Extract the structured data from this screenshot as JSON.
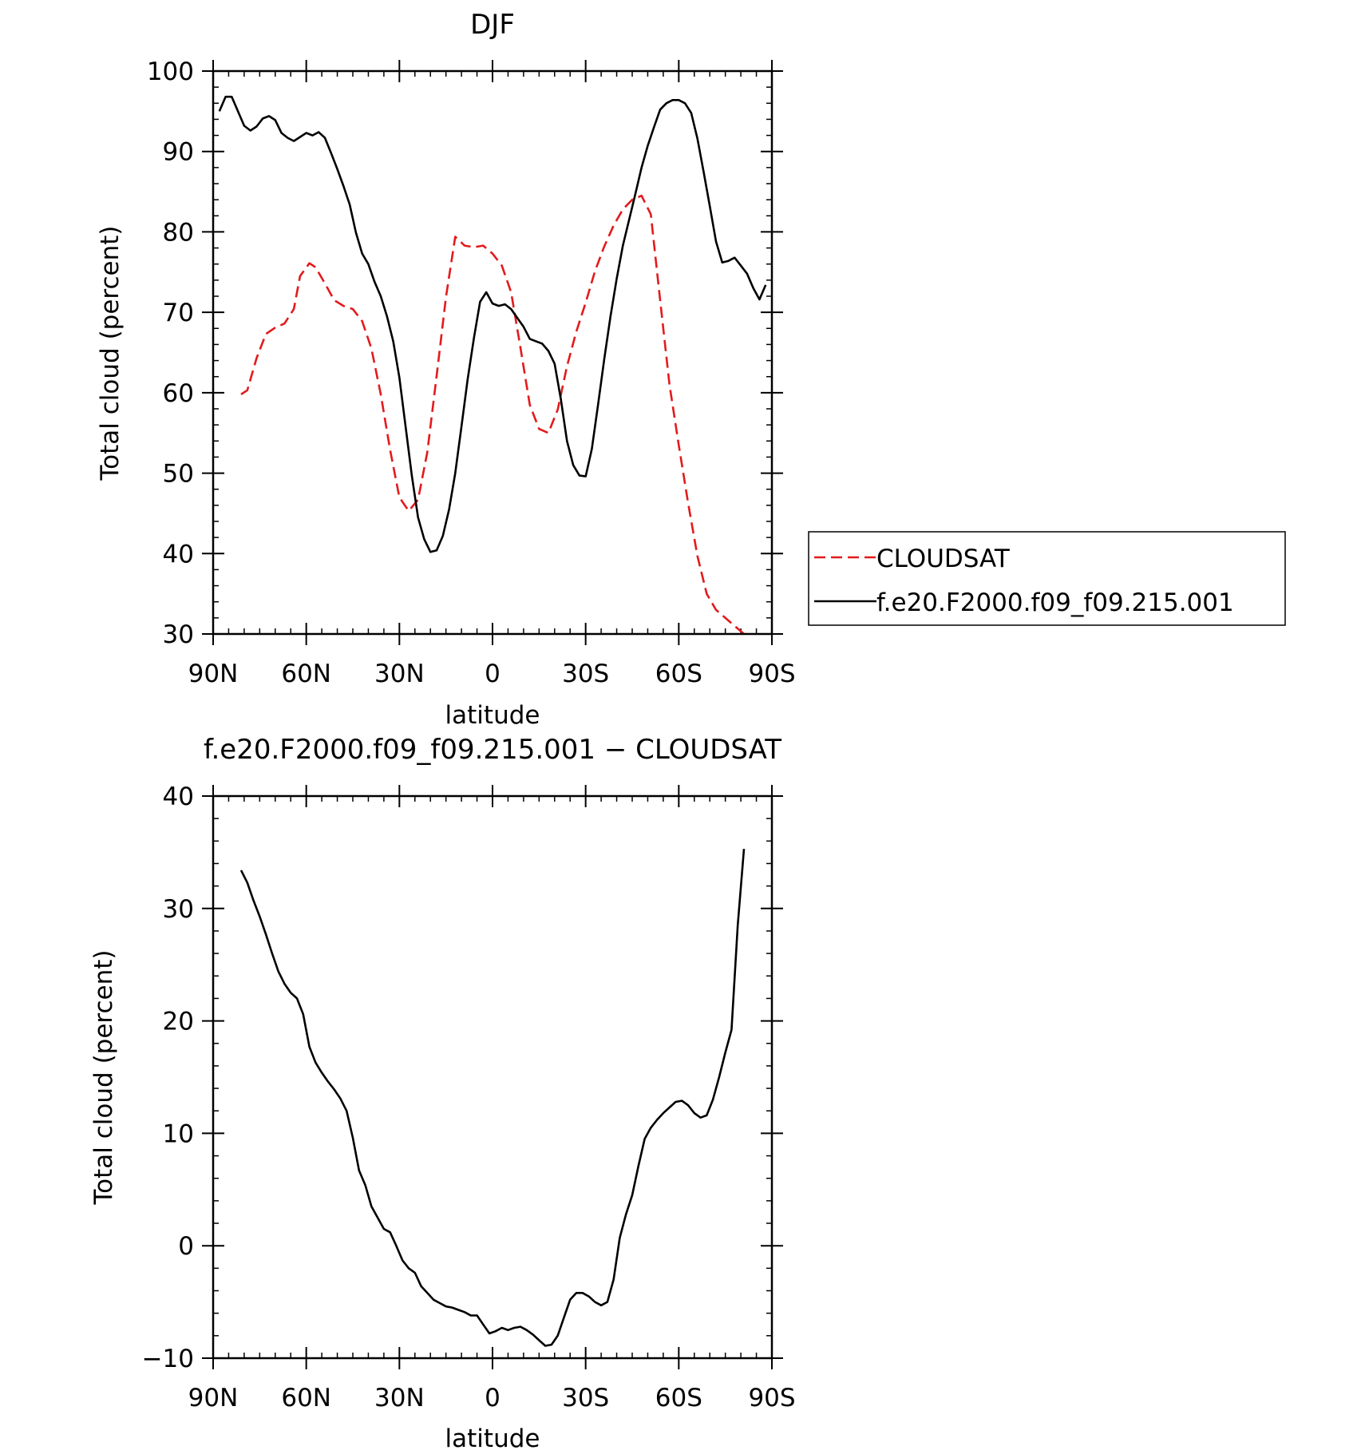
{
  "chart_data": [
    {
      "type": "line",
      "title": "DJF",
      "xlabel": "latitude",
      "ylabel": "Total cloud (percent)",
      "xlim": [
        90,
        -90
      ],
      "ylim": [
        30,
        100
      ],
      "yticks": [
        30,
        40,
        50,
        60,
        70,
        80,
        90,
        100
      ],
      "xticks": [
        {
          "value": 90,
          "label": "90N"
        },
        {
          "value": 60,
          "label": "60N"
        },
        {
          "value": 30,
          "label": "30N"
        },
        {
          "value": 0,
          "label": "0"
        },
        {
          "value": -30,
          "label": "30S"
        },
        {
          "value": -60,
          "label": "60S"
        },
        {
          "value": -90,
          "label": "90S"
        }
      ],
      "grid": false,
      "legend": "right",
      "series": [
        {
          "name": "CLOUDSAT",
          "color": "#e31a1c",
          "dash": "dashed",
          "x": [
            81,
            79,
            76,
            73,
            70,
            67,
            64,
            62,
            59,
            57,
            54,
            51,
            48,
            45,
            42,
            39,
            36,
            33,
            30,
            27,
            24,
            21,
            18,
            15,
            12,
            9,
            6,
            3,
            0,
            -3,
            -6,
            -9,
            -12,
            -15,
            -18,
            -21,
            -24,
            -27,
            -30,
            -33,
            -36,
            -39,
            -42,
            -45,
            -48,
            -51,
            -54,
            -57,
            -60,
            -63,
            -66,
            -69,
            -72,
            -75,
            -78,
            -81
          ],
          "y": [
            59.8,
            60.3,
            64.3,
            67.3,
            68.1,
            68.6,
            70.4,
            74.5,
            76.1,
            75.6,
            73.6,
            71.5,
            70.8,
            70.4,
            68.9,
            65.5,
            59.8,
            52.9,
            47.0,
            45.3,
            46.7,
            52.6,
            62.1,
            71.9,
            79.4,
            78.3,
            78.1,
            78.3,
            77.3,
            75.8,
            72.5,
            65.6,
            58.5,
            55.5,
            55.0,
            57.9,
            63.3,
            67.6,
            71.2,
            75.1,
            78.2,
            80.8,
            82.8,
            84.0,
            84.5,
            82.2,
            71.5,
            61.0,
            53.5,
            46.3,
            39.7,
            35.0,
            33.0,
            32.0,
            31.0,
            30.0
          ]
        },
        {
          "name": "f.e20.F2000.f09_f09.215.001",
          "color": "#000000",
          "dash": "solid",
          "x": [
            88,
            86,
            84,
            82,
            80,
            78,
            76,
            74,
            72,
            70,
            68,
            66,
            64,
            62,
            60,
            58,
            56,
            54,
            52,
            50,
            48,
            46,
            44,
            42,
            40,
            38,
            36,
            34,
            32,
            30,
            28,
            26,
            24,
            22,
            20,
            18,
            16,
            14,
            12,
            10,
            8,
            6,
            4,
            2,
            0,
            -2,
            -4,
            -6,
            -8,
            -10,
            -12,
            -14,
            -16,
            -18,
            -20,
            -22,
            -24,
            -26,
            -28,
            -30,
            -32,
            -34,
            -36,
            -38,
            -40,
            -42,
            -44,
            -46,
            -48,
            -50,
            -52,
            -54,
            -56,
            -58,
            -60,
            -62,
            -64,
            -66,
            -68,
            -70,
            -72,
            -74,
            -76,
            -78,
            -80,
            -82,
            -84,
            -86,
            -88
          ],
          "y": [
            95.0,
            96.8,
            96.8,
            95.0,
            93.2,
            92.6,
            93.1,
            94.1,
            94.4,
            93.9,
            92.3,
            91.7,
            91.3,
            91.8,
            92.3,
            92.0,
            92.4,
            91.7,
            89.8,
            87.8,
            85.7,
            83.4,
            79.9,
            77.3,
            76.0,
            73.8,
            72.0,
            69.5,
            66.4,
            61.9,
            55.8,
            49.7,
            44.5,
            41.8,
            40.2,
            40.4,
            42.2,
            45.5,
            50.0,
            55.8,
            61.7,
            66.8,
            71.3,
            72.5,
            71.1,
            70.8,
            71.0,
            70.4,
            69.3,
            68.2,
            66.7,
            66.4,
            66.1,
            65.2,
            63.6,
            59.2,
            54.0,
            51.0,
            49.7,
            49.6,
            53.0,
            58.5,
            64.2,
            69.5,
            74.2,
            78.3,
            81.5,
            84.7,
            88.0,
            90.7,
            93.0,
            95.2,
            96.0,
            96.4,
            96.4,
            96.0,
            94.8,
            91.6,
            87.5,
            83.2,
            78.8,
            76.2,
            76.4,
            76.8,
            75.8,
            74.8,
            73.0,
            71.6,
            73.4
          ]
        }
      ]
    },
    {
      "type": "line",
      "title": "f.e20.F2000.f09_f09.215.001 − CLOUDSAT",
      "xlabel": "latitude",
      "ylabel": "Total cloud (percent)",
      "xlim": [
        90,
        -90
      ],
      "ylim": [
        -10,
        40
      ],
      "yticks": [
        -10,
        0,
        10,
        20,
        30,
        40
      ],
      "ytick_labels": [
        "−10",
        "0",
        "10",
        "20",
        "30",
        "40"
      ],
      "xticks": [
        {
          "value": 90,
          "label": "90N"
        },
        {
          "value": 60,
          "label": "60N"
        },
        {
          "value": 30,
          "label": "30N"
        },
        {
          "value": 0,
          "label": "0"
        },
        {
          "value": -30,
          "label": "30S"
        },
        {
          "value": -60,
          "label": "60S"
        },
        {
          "value": -90,
          "label": "90S"
        }
      ],
      "grid": false,
      "series": [
        {
          "color": "#000000",
          "x": [
            81,
            79,
            77,
            75,
            73,
            71,
            69,
            67,
            65,
            63,
            61,
            59,
            57,
            55,
            53,
            51,
            49,
            47,
            45,
            43,
            41,
            39,
            37,
            35,
            33,
            31,
            29,
            27,
            25,
            23,
            21,
            19,
            17,
            15,
            13,
            11,
            9,
            7,
            5,
            3,
            1,
            -1,
            -3,
            -5,
            -7,
            -9,
            -11,
            -13,
            -15,
            -17,
            -19,
            -21,
            -23,
            -25,
            -27,
            -29,
            -31,
            -33,
            -35,
            -37,
            -39,
            -41,
            -43,
            -45,
            -47,
            -49,
            -51,
            -53,
            -55,
            -57,
            -59,
            -61,
            -63,
            -65,
            -67,
            -69,
            -71,
            -73,
            -75,
            -77,
            -79,
            -81
          ],
          "y": [
            33.4,
            32.3,
            30.7,
            29.3,
            27.7,
            26.0,
            24.4,
            23.3,
            22.5,
            22.0,
            20.6,
            17.7,
            16.3,
            15.4,
            14.6,
            13.9,
            13.1,
            12.0,
            9.6,
            6.7,
            5.4,
            3.5,
            2.5,
            1.5,
            1.2,
            0.0,
            -1.3,
            -2.0,
            -2.4,
            -3.6,
            -4.2,
            -4.8,
            -5.1,
            -5.4,
            -5.5,
            -5.7,
            -5.9,
            -6.2,
            -6.2,
            -7.0,
            -7.8,
            -7.6,
            -7.3,
            -7.5,
            -7.3,
            -7.2,
            -7.5,
            -7.9,
            -8.4,
            -8.9,
            -8.8,
            -8.0,
            -6.4,
            -4.8,
            -4.2,
            -4.2,
            -4.5,
            -5.0,
            -5.3,
            -5.0,
            -3.0,
            0.7,
            2.8,
            4.5,
            7.1,
            9.5,
            10.5,
            11.2,
            11.8,
            12.3,
            12.8,
            12.9,
            12.5,
            11.8,
            11.4,
            11.6,
            13.0,
            15.0,
            17.2,
            19.2,
            28.5,
            35.3
          ]
        }
      ]
    }
  ]
}
